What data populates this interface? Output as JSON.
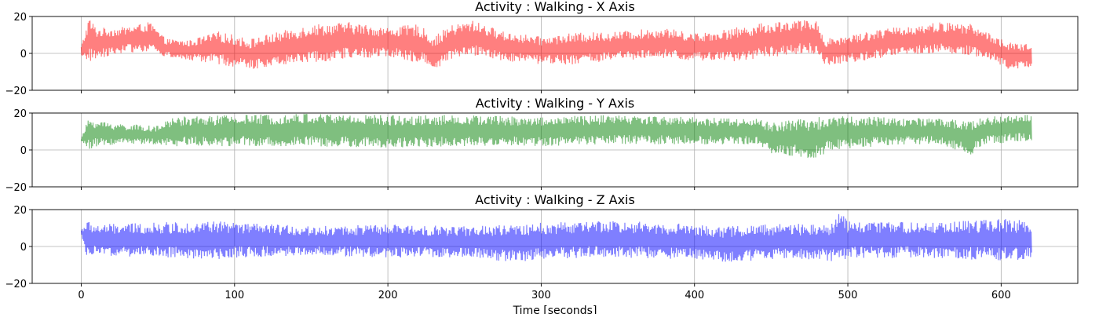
{
  "chart_data": [
    {
      "type": "line",
      "title": "Activity : Walking - X Axis",
      "color": "#ff0000",
      "alpha": 0.5,
      "xlim": [
        -32,
        650
      ],
      "ylim": [
        -20,
        20
      ],
      "yticks": [
        -20,
        0,
        20
      ],
      "ytick_labels": [
        "−20",
        "0",
        "20"
      ],
      "grid": true,
      "x_end": 620,
      "envelope": {
        "x": [
          0,
          5,
          10,
          25,
          45,
          55,
          70,
          90,
          110,
          130,
          150,
          175,
          200,
          220,
          230,
          240,
          255,
          275,
          300,
          320,
          350,
          380,
          400,
          420,
          440,
          460,
          480,
          485,
          500,
          520,
          540,
          560,
          580,
          595,
          605,
          620
        ],
        "upper": [
          4,
          20,
          14,
          14,
          17,
          8,
          7,
          12,
          8,
          12,
          16,
          17,
          14,
          16,
          9,
          15,
          18,
          12,
          9,
          11,
          12,
          14,
          11,
          13,
          16,
          18,
          18,
          8,
          10,
          13,
          15,
          17,
          16,
          10,
          6,
          5
        ],
        "lower": [
          -3,
          -5,
          -3,
          0,
          1,
          -2,
          -4,
          -6,
          -9,
          -6,
          -5,
          -3,
          -2,
          -5,
          -9,
          -4,
          -1,
          -4,
          -6,
          -6,
          -4,
          -3,
          -4,
          -5,
          -3,
          -1,
          0,
          -7,
          -5,
          -3,
          -1,
          0,
          -1,
          -4,
          -9,
          -8
        ]
      }
    },
    {
      "type": "line",
      "title": "Activity : Walking - Y Axis",
      "color": "#008000",
      "alpha": 0.5,
      "xlim": [
        -32,
        650
      ],
      "ylim": [
        -20,
        20
      ],
      "yticks": [
        -20,
        0,
        20
      ],
      "ytick_labels": [
        "−20",
        "0",
        "20"
      ],
      "grid": true,
      "x_end": 620,
      "envelope": {
        "x": [
          0,
          5,
          10,
          30,
          50,
          60,
          100,
          150,
          200,
          250,
          300,
          350,
          400,
          440,
          450,
          470,
          480,
          490,
          520,
          560,
          580,
          590,
          605,
          620
        ],
        "upper": [
          6,
          18,
          16,
          14,
          13,
          18,
          19,
          20,
          19,
          19,
          18,
          19,
          18,
          17,
          15,
          17,
          18,
          19,
          18,
          17,
          16,
          18,
          19,
          19
        ],
        "lower": [
          5,
          0,
          2,
          3,
          3,
          2,
          2,
          2,
          1,
          2,
          2,
          3,
          3,
          3,
          -2,
          -4,
          -5,
          0,
          2,
          3,
          -3,
          3,
          4,
          5
        ]
      }
    },
    {
      "type": "line",
      "title": "Activity : Walking - Z Axis",
      "color": "#0000ff",
      "alpha": 0.5,
      "xlim": [
        -32,
        650
      ],
      "ylim": [
        -20,
        20
      ],
      "yticks": [
        -20,
        0,
        20
      ],
      "ytick_labels": [
        "−20",
        "0",
        "20"
      ],
      "xticks": [
        0,
        100,
        200,
        300,
        400,
        500,
        600
      ],
      "xtick_labels": [
        "0",
        "100",
        "200",
        "300",
        "400",
        "500",
        "600"
      ],
      "xlabel": "Time [seconds]",
      "grid": true,
      "x_end": 620,
      "envelope": {
        "x": [
          0,
          3,
          10,
          50,
          90,
          100,
          150,
          200,
          250,
          290,
          300,
          350,
          400,
          420,
          450,
          490,
          495,
          500,
          550,
          600,
          620
        ],
        "upper": [
          9,
          14,
          12,
          13,
          14,
          13,
          11,
          12,
          11,
          12,
          13,
          14,
          12,
          11,
          12,
          13,
          19,
          14,
          13,
          15,
          14
        ],
        "lower": [
          7,
          -5,
          -5,
          -6,
          -7,
          -6,
          -5,
          -6,
          -6,
          -9,
          -7,
          -6,
          -7,
          -9,
          -7,
          -8,
          -8,
          -7,
          -6,
          -8,
          -7
        ]
      }
    }
  ]
}
